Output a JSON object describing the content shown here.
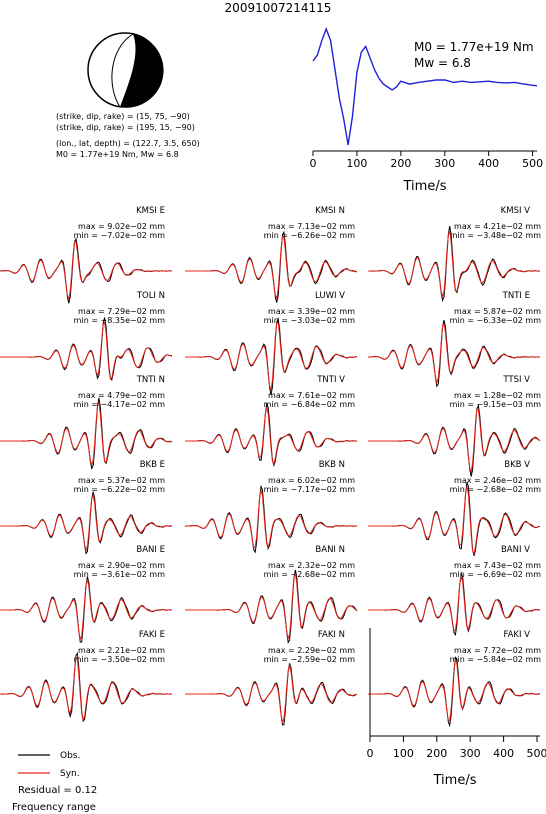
{
  "event_id": "20091007214115",
  "mechanism": {
    "plane1": "(strike, dip, rake) = (15, 75, −90)",
    "plane2": "(strike, dip, rake) = (195, 15, −90)",
    "location": "(lon., lat, depth) = (122.7, 3.5, 650)",
    "moment_line": "M0 = 1.77e+19 Nm, Mw = 6.8"
  },
  "stf": {
    "m0_text": "M0 = 1.77e+19 Nm",
    "mw_text": "Mw = 6.8",
    "xlabel": "Time/s",
    "xticks": [
      "0",
      "100",
      "200",
      "300",
      "400",
      "500"
    ]
  },
  "bottom_axis": {
    "xlabel": "Time/s",
    "xticks": [
      "0",
      "100",
      "200",
      "300",
      "400",
      "500"
    ]
  },
  "legend": {
    "obs": "Obs.",
    "syn": "Syn."
  },
  "footer": {
    "residual": "Residual = 0.12",
    "frequency": "Frequency range"
  },
  "colors": {
    "observed": "#000000",
    "synthetic": "#e8241c"
  },
  "chart_data": [
    {
      "type": "line",
      "x": [
        0,
        10,
        20,
        30,
        40,
        50,
        60,
        70,
        80,
        90,
        100,
        110,
        120,
        130,
        140,
        150,
        160,
        170,
        180,
        190,
        200,
        220,
        240,
        260,
        280,
        300,
        320,
        340,
        360,
        380,
        400,
        420,
        440,
        460,
        480,
        500,
        510
      ],
      "values": [
        0.45,
        0.55,
        0.8,
        1.0,
        0.8,
        0.3,
        -0.2,
        -0.55,
        -1.0,
        -0.5,
        0.25,
        0.6,
        0.7,
        0.5,
        0.3,
        0.15,
        0.05,
        0.0,
        -0.05,
        0.0,
        0.1,
        0.05,
        0.08,
        0.1,
        0.12,
        0.12,
        0.08,
        0.1,
        0.08,
        0.09,
        0.1,
        0.08,
        0.07,
        0.08,
        0.05,
        0.03,
        0.02
      ]
    },
    {
      "type": "line",
      "traces": [
        {
          "station": "KMSI E",
          "max": "max = 9.02e−02 mm",
          "min": "min = −7.02e−02 mm"
        },
        {
          "station": "KMSI N",
          "max": "max = 7.13e−02 mm",
          "min": "min = −6.26e−02 mm"
        },
        {
          "station": "KMSI V",
          "max": "max = 4.21e−02 mm",
          "min": "min = −3.48e−02 mm"
        },
        {
          "station": "TOLI N",
          "max": "max = 7.29e−02 mm",
          "min": "min = −8.35e−02 mm"
        },
        {
          "station": "LUWI V",
          "max": "max = 3.39e−02 mm",
          "min": "min = −3.03e−02 mm"
        },
        {
          "station": "TNTI E",
          "max": "max = 5.87e−02 mm",
          "min": "min = −6.33e−02 mm"
        },
        {
          "station": "TNTI N",
          "max": "max = 4.79e−02 mm",
          "min": "min = −4.17e−02 mm"
        },
        {
          "station": "TNTI V",
          "max": "max = 7.61e−02 mm",
          "min": "min = −6.84e−02 mm"
        },
        {
          "station": "TTSI V",
          "max": "max = 1.28e−02 mm",
          "min": "min = −9.15e−03 mm"
        },
        {
          "station": "BKB E",
          "max": "max = 5.37e−02 mm",
          "min": "min = −6.22e−02 mm"
        },
        {
          "station": "BKB N",
          "max": "max = 6.02e−02 mm",
          "min": "min = −7.17e−02 mm"
        },
        {
          "station": "BKB V",
          "max": "max = 2.46e−02 mm",
          "min": "min = −2.68e−02 mm"
        },
        {
          "station": "BANI E",
          "max": "max = 2.90e−02 mm",
          "min": "min = −3.61e−02 mm"
        },
        {
          "station": "BANI N",
          "max": "max = 2.32e−02 mm",
          "min": "min = −2.68e−02 mm"
        },
        {
          "station": "BANI V",
          "max": "max = 7.43e−02 mm",
          "min": "min = −6.69e−02 mm"
        },
        {
          "station": "FAKI E",
          "max": "max = 2.21e−02 mm",
          "min": "min = −3.50e−02 mm"
        },
        {
          "station": "FAKI N",
          "max": "max = 2.29e−02 mm",
          "min": "min = −2.59e−02 mm"
        },
        {
          "station": "FAKI V",
          "max": "max = 7.72e−02 mm",
          "min": "min = −5.84e−02 mm"
        }
      ]
    }
  ]
}
